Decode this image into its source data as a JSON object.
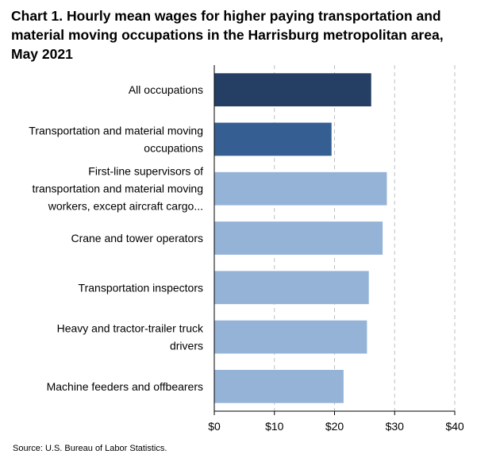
{
  "chart_data": {
    "type": "bar",
    "orientation": "horizontal",
    "title": "Chart 1. Hourly mean wages for higher paying transportation and material moving occupations in the Harrisburg metropolitan area, May 2021",
    "categories": [
      [
        "All occupations"
      ],
      [
        "Transportation and material moving",
        "occupations"
      ],
      [
        "First-line supervisors of",
        "transportation and material moving",
        "workers, except aircraft cargo..."
      ],
      [
        "Crane and tower operators"
      ],
      [
        "Transportation inspectors"
      ],
      [
        "Heavy and tractor-trailer truck",
        "drivers"
      ],
      [
        "Machine feeders and offbearers"
      ]
    ],
    "values": [
      26.1,
      19.5,
      28.7,
      28.0,
      25.7,
      25.4,
      21.5
    ],
    "bar_colors": [
      "#243f63",
      "#355f93",
      "#95b3d7",
      "#95b3d7",
      "#95b3d7",
      "#95b3d7",
      "#95b3d7"
    ],
    "xlim": [
      0,
      40
    ],
    "xticks": [
      0,
      10,
      20,
      30,
      40
    ],
    "xtick_labels": [
      "$0",
      "$10",
      "$20",
      "$30",
      "$40"
    ],
    "grid": "vertical-dashed",
    "source": "Source: U.S. Bureau of Labor Statistics."
  }
}
